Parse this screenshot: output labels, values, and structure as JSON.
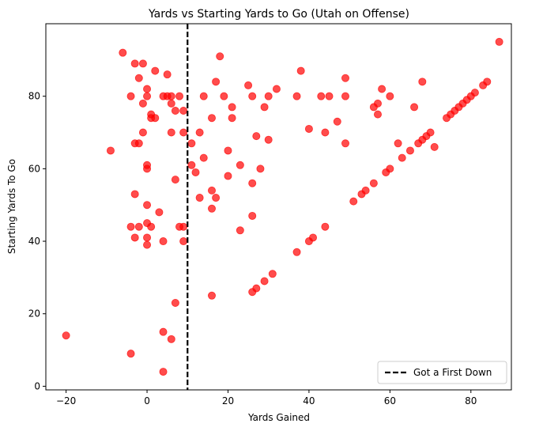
{
  "chart_data": {
    "type": "scatter",
    "title": "Yards vs Starting Yards to Go (Utah on Offense)",
    "xlabel": "Yards Gained",
    "ylabel": "Starting Yards To Go",
    "xlim": [
      -25,
      90
    ],
    "ylim": [
      -1,
      100
    ],
    "xticks": [
      -20,
      0,
      20,
      40,
      60,
      80
    ],
    "yticks": [
      0,
      20,
      40,
      60,
      80
    ],
    "grid": false,
    "marker_color": "#ff0000",
    "marker_opacity": 0.7,
    "reference_line": {
      "x": 10,
      "style": "dashed",
      "color": "#000000",
      "label": "Got a First Down"
    },
    "legend_position": "lower right",
    "series": [
      {
        "points": [
          [
            -20,
            14
          ],
          [
            -9,
            65
          ],
          [
            -6,
            92
          ],
          [
            -4,
            80
          ],
          [
            -4,
            44
          ],
          [
            -4,
            9
          ],
          [
            -3,
            89
          ],
          [
            -3,
            67
          ],
          [
            -3,
            53
          ],
          [
            -3,
            41
          ],
          [
            -2,
            85
          ],
          [
            -2,
            67
          ],
          [
            -2,
            44
          ],
          [
            -1,
            89
          ],
          [
            -1,
            78
          ],
          [
            -1,
            70
          ],
          [
            0,
            82
          ],
          [
            0,
            80
          ],
          [
            0,
            61
          ],
          [
            0,
            60
          ],
          [
            0,
            50
          ],
          [
            0,
            45
          ],
          [
            0,
            41
          ],
          [
            0,
            39
          ],
          [
            1,
            75
          ],
          [
            1,
            74
          ],
          [
            1,
            44
          ],
          [
            2,
            87
          ],
          [
            2,
            74
          ],
          [
            3,
            48
          ],
          [
            4,
            80
          ],
          [
            4,
            40
          ],
          [
            4,
            15
          ],
          [
            4,
            4
          ],
          [
            5,
            86
          ],
          [
            5,
            80
          ],
          [
            6,
            80
          ],
          [
            6,
            78
          ],
          [
            6,
            70
          ],
          [
            6,
            13
          ],
          [
            7,
            76
          ],
          [
            7,
            57
          ],
          [
            7,
            23
          ],
          [
            8,
            80
          ],
          [
            8,
            44
          ],
          [
            9,
            76
          ],
          [
            9,
            70
          ],
          [
            9,
            44
          ],
          [
            9,
            40
          ],
          [
            11,
            67
          ],
          [
            11,
            61
          ],
          [
            12,
            59
          ],
          [
            13,
            70
          ],
          [
            13,
            52
          ],
          [
            14,
            80
          ],
          [
            14,
            63
          ],
          [
            16,
            74
          ],
          [
            16,
            54
          ],
          [
            16,
            49
          ],
          [
            16,
            25
          ],
          [
            17,
            84
          ],
          [
            17,
            52
          ],
          [
            18,
            91
          ],
          [
            19,
            80
          ],
          [
            20,
            65
          ],
          [
            20,
            58
          ],
          [
            21,
            77
          ],
          [
            21,
            74
          ],
          [
            23,
            61
          ],
          [
            23,
            43
          ],
          [
            25,
            83
          ],
          [
            26,
            80
          ],
          [
            26,
            56
          ],
          [
            26,
            47
          ],
          [
            26,
            26
          ],
          [
            27,
            69
          ],
          [
            27,
            27
          ],
          [
            28,
            60
          ],
          [
            29,
            77
          ],
          [
            29,
            29
          ],
          [
            30,
            80
          ],
          [
            30,
            68
          ],
          [
            31,
            31
          ],
          [
            32,
            82
          ],
          [
            37,
            80
          ],
          [
            37,
            37
          ],
          [
            38,
            87
          ],
          [
            40,
            71
          ],
          [
            40,
            40
          ],
          [
            41,
            41
          ],
          [
            43,
            80
          ],
          [
            44,
            70
          ],
          [
            44,
            44
          ],
          [
            45,
            80
          ],
          [
            47,
            73
          ],
          [
            49,
            85
          ],
          [
            49,
            80
          ],
          [
            49,
            67
          ],
          [
            51,
            51
          ],
          [
            53,
            53
          ],
          [
            54,
            54
          ],
          [
            56,
            77
          ],
          [
            56,
            56
          ],
          [
            57,
            78
          ],
          [
            57,
            75
          ],
          [
            58,
            82
          ],
          [
            59,
            59
          ],
          [
            60,
            80
          ],
          [
            60,
            60
          ],
          [
            62,
            67
          ],
          [
            63,
            63
          ],
          [
            65,
            65
          ],
          [
            66,
            77
          ],
          [
            67,
            67
          ],
          [
            68,
            84
          ],
          [
            68,
            68
          ],
          [
            69,
            69
          ],
          [
            70,
            70
          ],
          [
            71,
            66
          ],
          [
            74,
            74
          ],
          [
            75,
            75
          ],
          [
            76,
            76
          ],
          [
            77,
            77
          ],
          [
            78,
            78
          ],
          [
            79,
            79
          ],
          [
            80,
            80
          ],
          [
            81,
            81
          ],
          [
            83,
            83
          ],
          [
            84,
            84
          ],
          [
            87,
            95
          ]
        ]
      }
    ]
  }
}
